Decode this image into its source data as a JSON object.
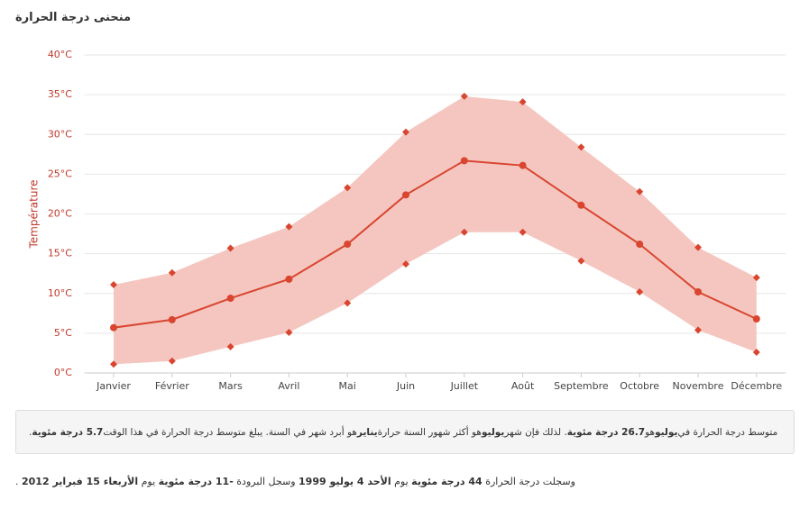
{
  "title": "منحنى درجة الحرارة",
  "chart_data": {
    "type": "range-line",
    "y_label": "Température",
    "categories": [
      "Janvier",
      "Février",
      "Mars",
      "Avril",
      "Mai",
      "Juin",
      "Juillet",
      "Août",
      "Septembre",
      "Octobre",
      "Novembre",
      "Décembre"
    ],
    "series": [
      {
        "color": "#d9452f",
        "values": [
          5.7,
          6.7,
          9.4,
          11.8,
          16.2,
          22.4,
          26.7,
          26.1,
          21.1,
          16.2,
          10.2,
          6.8
        ]
      },
      {
        "color": "#d9452f",
        "values": [
          11.1,
          12.6,
          15.7,
          18.4,
          23.3,
          30.3,
          34.8,
          34.1,
          28.4,
          22.8,
          15.8,
          12.0
        ]
      },
      {
        "color": "#d9452f",
        "values": [
          1.1,
          1.5,
          3.3,
          5.1,
          8.8,
          13.7,
          17.7,
          17.7,
          14.1,
          10.2,
          5.4,
          2.6
        ]
      }
    ],
    "band_color": "#f5c6c0",
    "ylim": [
      0,
      40
    ],
    "yticks": [
      {
        "value": 0,
        "label": "0°C"
      },
      {
        "value": 5,
        "label": "5°C"
      },
      {
        "value": 10,
        "label": "10°C"
      },
      {
        "value": 15,
        "label": "15°C"
      },
      {
        "value": 20,
        "label": "20°C"
      },
      {
        "value": 25,
        "label": "25°C"
      },
      {
        "value": 30,
        "label": "30°C"
      },
      {
        "value": 35,
        "label": "35°C"
      },
      {
        "value": 40,
        "label": "40°C"
      }
    ],
    "grid": true
  },
  "summary": [
    {
      "text": "متوسط درجة الحرارة في ",
      "bold": false
    },
    {
      "text": "يوليو",
      "bold": true
    },
    {
      "text": " هو ",
      "bold": false
    },
    {
      "text": "26.7 درجة مئوية",
      "bold": true
    },
    {
      "text": " . لذلك فإن شهر ",
      "bold": false
    },
    {
      "text": "يوليو",
      "bold": true
    },
    {
      "text": " هو أكثر شهور السنة حرارة ",
      "bold": false
    },
    {
      "text": "يناير",
      "bold": true
    },
    {
      "text": " هو أبرد شهر في السنة. يبلغ متوسط درجة الحرارة في هذا الوقت ",
      "bold": false
    },
    {
      "text": "5.7 درجة مئوية",
      "bold": true
    },
    {
      "text": " .",
      "bold": false
    }
  ],
  "records": [
    {
      "text": "وسجلت درجة الحرارة ",
      "bold": false
    },
    {
      "text": "44 درجة مئوية",
      "bold": true
    },
    {
      "text": " يوم ",
      "bold": false
    },
    {
      "text": "الأحد 4 يوليو 1999",
      "bold": true
    },
    {
      "text": " وسجل البرودة ",
      "bold": false
    },
    {
      "text": "-11 درجة مئوية",
      "bold": true
    },
    {
      "text": " يوم ",
      "bold": false
    },
    {
      "text": "الأربعاء 15 فبراير 2012",
      "bold": true
    },
    {
      "text": " .",
      "bold": false
    }
  ]
}
